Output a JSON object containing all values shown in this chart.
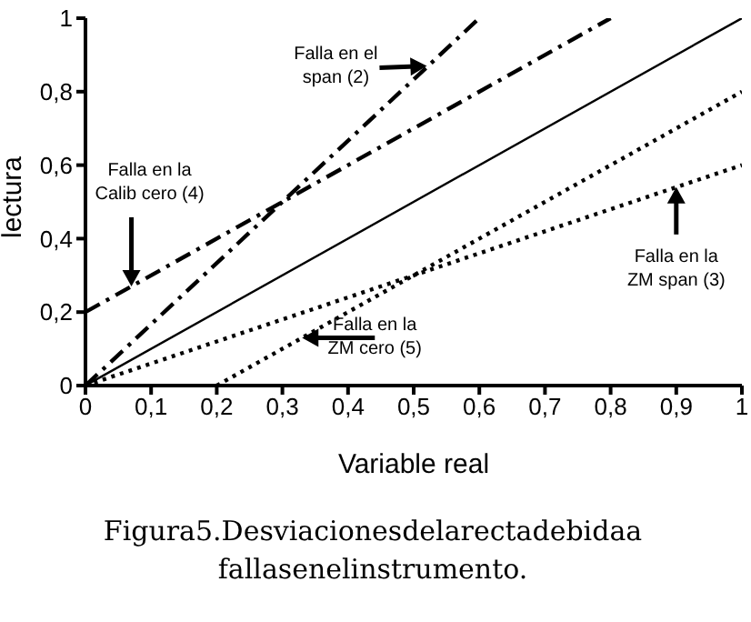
{
  "chart_data": {
    "type": "line",
    "xlabel": "Variable real",
    "ylabel": "lectura",
    "xlim": [
      0,
      1
    ],
    "ylim": [
      0,
      1
    ],
    "xticks": [
      0,
      {
        "value": 0.1,
        "label": "0,1"
      },
      {
        "value": 0.2,
        "label": "0,2"
      },
      {
        "value": 0.3,
        "label": "0,3"
      },
      {
        "value": 0.4,
        "label": "0,4"
      },
      {
        "value": 0.5,
        "label": "0,5"
      },
      {
        "value": 0.6,
        "label": "0,6"
      },
      {
        "value": 0.7,
        "label": "0,7"
      },
      {
        "value": 0.8,
        "label": "0,8"
      },
      {
        "value": 0.9,
        "label": "0,9"
      },
      1
    ],
    "yticks": [
      0,
      {
        "value": 0.2,
        "label": "0,2"
      },
      {
        "value": 0.4,
        "label": "0,4"
      },
      {
        "value": 0.6,
        "label": "0,6"
      },
      {
        "value": 0.8,
        "label": "0,8"
      },
      1
    ],
    "grid": false,
    "legend": false,
    "marker": "none",
    "series": [
      {
        "color": "#000000",
        "line_style": "solid",
        "x": [
          0,
          1
        ],
        "values": [
          0,
          1
        ]
      },
      {
        "color": "#000000",
        "line_style": "dashed",
        "x": [
          0,
          0.6
        ],
        "values": [
          0,
          1
        ]
      },
      {
        "color": "#000000",
        "line_style": "dashed",
        "x": [
          0,
          0.8
        ],
        "values": [
          0.2,
          1
        ]
      },
      {
        "color": "#000000",
        "line_style": "dotted",
        "x": [
          0,
          1
        ],
        "values": [
          0,
          0.6
        ]
      },
      {
        "color": "#000000",
        "line_style": "dotted",
        "x": [
          0.2,
          1
        ],
        "values": [
          0,
          0.8
        ]
      }
    ],
    "annotations": [
      {
        "text": "Falla en el span (2)",
        "x": 0.52,
        "y": 0.87
      },
      {
        "text": "Falla en la Calib cero (4)",
        "x": 0.07,
        "y": 0.27
      },
      {
        "text": "Falla en la ZM span (3)",
        "x": 0.9,
        "y": 0.54
      },
      {
        "text": "Falla en la ZM cero (5)",
        "x": 0.33,
        "y": 0.13
      },
      "Figura5.Desviacionesdelarectadebidaa fallasenelinstrumento."
    ]
  }
}
